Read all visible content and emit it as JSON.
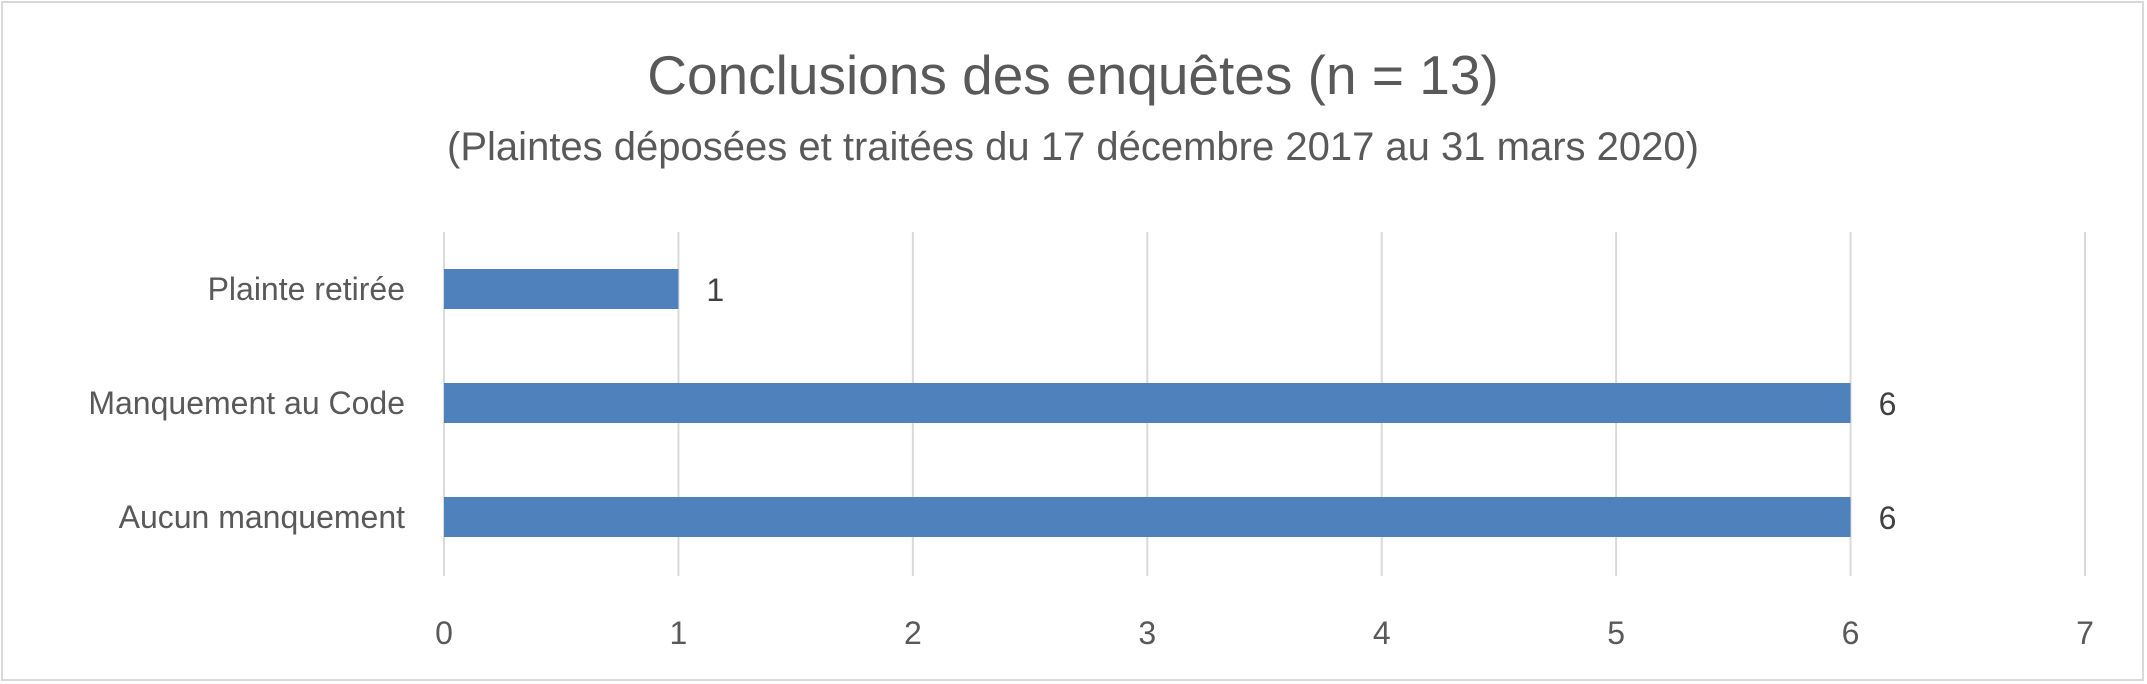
{
  "chart_data": {
    "type": "bar",
    "orientation": "horizontal",
    "title": "Conclusions des enquêtes (n = 13)",
    "subtitle": "(Plaintes déposées et traitées du 17 décembre 2017 au 31 mars 2020)",
    "xlabel": "",
    "ylabel": "",
    "categories": [
      "Plainte retirée",
      "Manquement au Code",
      "Aucun manquement"
    ],
    "values": [
      1,
      6,
      6
    ],
    "data_labels": [
      "1",
      "6",
      "6"
    ],
    "xlim": [
      0,
      7
    ],
    "x_ticks": [
      "0",
      "1",
      "2",
      "3",
      "4",
      "5",
      "6",
      "7"
    ],
    "grid": true,
    "legend": "none",
    "colors": {
      "bar": "#4f81bd",
      "grid": "#d9d9d9",
      "text": "#595959",
      "label_text": "#404040",
      "border": "#d9d9d9"
    }
  }
}
